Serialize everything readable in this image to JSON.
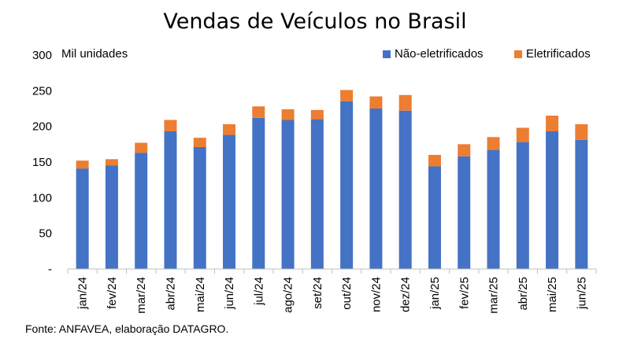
{
  "chart_data": {
    "type": "bar",
    "stacked": true,
    "title": "Vendas de Veículos no Brasil",
    "ylabel": "Mil unidades",
    "xlabel": "",
    "ylim": [
      0,
      300
    ],
    "yticks": [
      {
        "value": 0,
        "label": "-"
      },
      {
        "value": 50,
        "label": "50"
      },
      {
        "value": 100,
        "label": "100"
      },
      {
        "value": 150,
        "label": "150"
      },
      {
        "value": 200,
        "label": "200"
      },
      {
        "value": 250,
        "label": "250"
      },
      {
        "value": 300,
        "label": "300"
      }
    ],
    "grid": false,
    "legend_position": "top-right",
    "categories": [
      "jan/24",
      "fev/24",
      "mar/24",
      "abr/24",
      "mai/24",
      "jun/24",
      "jul/24",
      "ago/24",
      "set/24",
      "out/24",
      "nov/24",
      "dez/24",
      "jan/25",
      "fev/25",
      "mar/25",
      "abr/25",
      "mai/25",
      "jun/25"
    ],
    "series": [
      {
        "name": "Não-eletrificados",
        "color": "#4472C4",
        "values": [
          141,
          145,
          163,
          193,
          171,
          188,
          212,
          209,
          210,
          235,
          225,
          222,
          144,
          158,
          167,
          178,
          193,
          181
        ]
      },
      {
        "name": "Eletrificados",
        "color": "#ED7D31",
        "values": [
          11,
          9,
          14,
          16,
          13,
          15,
          16,
          15,
          13,
          16,
          17,
          22,
          16,
          17,
          18,
          20,
          22,
          22
        ]
      }
    ]
  },
  "source": "Fonte: ANFAVEA, elaboração DATAGRO."
}
